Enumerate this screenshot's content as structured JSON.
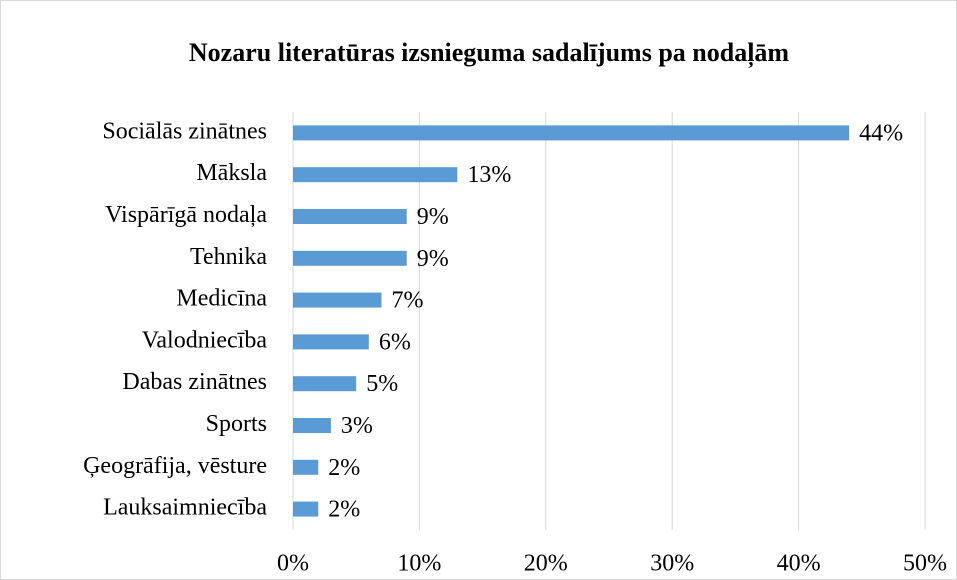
{
  "chart_data": {
    "type": "bar",
    "title": "Nozaru literatūras izsnieguma sadalījums pa nodaļām",
    "categories": [
      "Sociālās zinātnes",
      "Māksla",
      "Vispārīgā nodaļa",
      "Tehnika",
      "Medicīna",
      "Valodniecība",
      "Dabas zinātnes",
      "Sports",
      "Ģeogrāfija, vēsture",
      "Lauksaimniecība"
    ],
    "values": [
      44,
      13,
      9,
      9,
      7,
      6,
      5,
      3,
      2,
      2
    ],
    "value_labels": [
      "44%",
      "13%",
      "9%",
      "9%",
      "7%",
      "6%",
      "5%",
      "3%",
      "2%",
      "2%"
    ],
    "color": "#5b9bd5",
    "xlim": [
      0,
      50
    ],
    "xticks": [
      {
        "value": 0,
        "label": "0%"
      },
      {
        "value": 10,
        "label": "10%"
      },
      {
        "value": 20,
        "label": "20%"
      },
      {
        "value": 30,
        "label": "30%"
      },
      {
        "value": 40,
        "label": "40%"
      },
      {
        "value": 50,
        "label": "50%"
      }
    ],
    "grid": true
  }
}
